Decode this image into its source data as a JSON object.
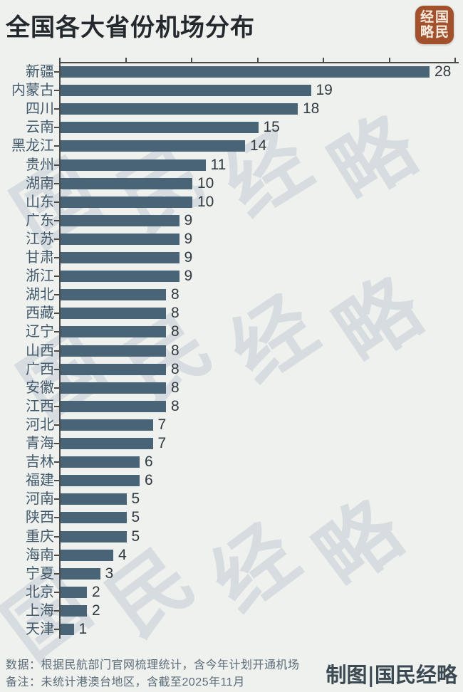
{
  "title": "全国各大省份机场分布",
  "logo": {
    "name": "国民经略",
    "grid": [
      "经",
      "国",
      "略",
      "民"
    ]
  },
  "watermark": {
    "text": "国民经略"
  },
  "chart_data": {
    "type": "bar",
    "orientation": "horizontal",
    "title": "全国各大省份机场分布",
    "categories": [
      "新疆",
      "内蒙古",
      "四川",
      "云南",
      "黑龙江",
      "贵州",
      "湖南",
      "山东",
      "广东",
      "江苏",
      "甘肃",
      "浙江",
      "湖北",
      "西藏",
      "辽宁",
      "山西",
      "广西",
      "安徽",
      "江西",
      "河北",
      "青海",
      "吉林",
      "福建",
      "河南",
      "陕西",
      "重庆",
      "海南",
      "宁夏",
      "北京",
      "上海",
      "天津"
    ],
    "values": [
      28,
      19,
      18,
      15,
      14,
      11,
      10,
      10,
      9,
      9,
      9,
      9,
      8,
      8,
      8,
      8,
      8,
      8,
      8,
      7,
      7,
      6,
      6,
      5,
      5,
      5,
      4,
      3,
      2,
      2,
      1
    ],
    "xlim": [
      0,
      30
    ],
    "ticks": [
      0,
      5,
      10,
      15,
      20,
      25,
      30
    ],
    "grid": false,
    "bar_color": "#4a6477",
    "data_labels": true
  },
  "footer": {
    "line1": "数据：根据民航部门官网梳理统计，含今年计划开通机场",
    "line2": "备注：未统计港澳台地区，含截至2025年11月",
    "credit": "制图|国民经略"
  }
}
